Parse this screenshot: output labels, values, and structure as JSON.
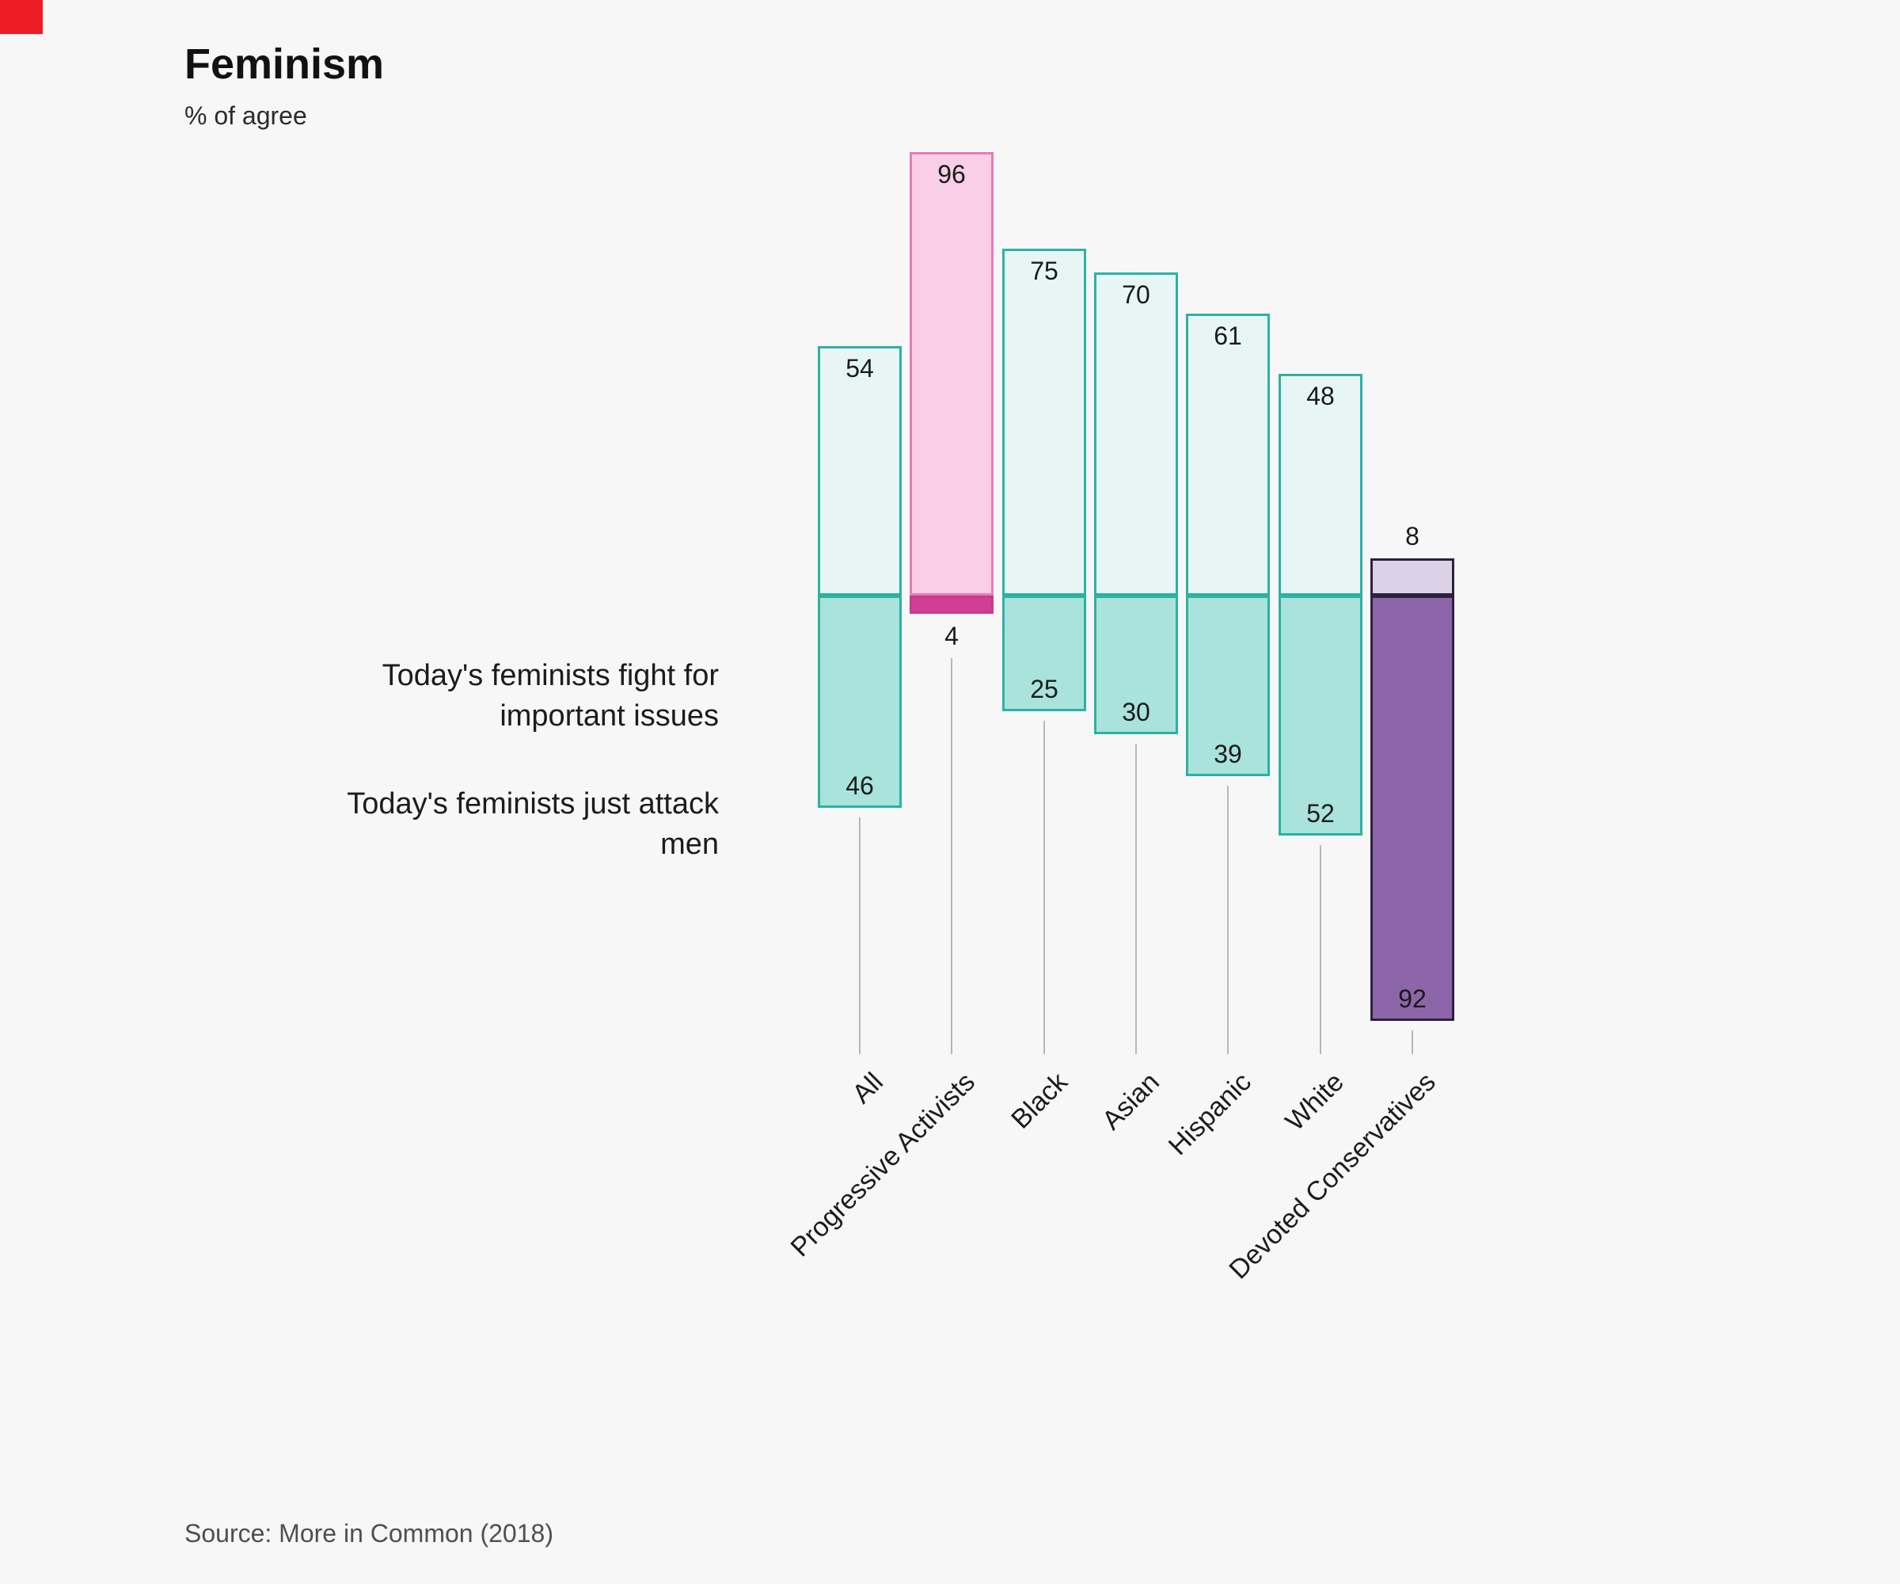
{
  "background": "#f7f7f8",
  "marker_color": "#ee1c25",
  "chart_data": {
    "type": "bar",
    "variant": "diverging-bar",
    "title": "Feminism",
    "subtitle": "% of agree",
    "source": "Source: More in Common (2018)",
    "categories": [
      "All",
      "Progressive Activists",
      "Black",
      "Asian",
      "Hispanic",
      "White",
      "Devoted Conservatives"
    ],
    "series": [
      {
        "name": "Today's feminists fight for important issues",
        "direction": "up",
        "values": [
          54,
          96,
          75,
          70,
          61,
          48,
          8
        ]
      },
      {
        "name": "Today's feminists just attack men",
        "direction": "down",
        "values": [
          46,
          4,
          25,
          30,
          39,
          52,
          92
        ]
      }
    ],
    "ylim": [
      0,
      100
    ],
    "grid": false,
    "legend_position": "left-annotations",
    "palette": [
      "teal",
      "pink",
      "teal",
      "teal",
      "teal",
      "teal",
      "purple"
    ],
    "colors": {
      "teal": {
        "top": "#e7f6f4",
        "topBorder": "#2bb2a4",
        "bottom": "#a9e3dc",
        "bottomBorder": "#2bb2a4"
      },
      "pink": {
        "top": "#f8cfe6",
        "topBorder": "#e979ba",
        "bottom": "#d23d95",
        "bottomBorder": "#c73a8d"
      },
      "purple": {
        "top": "#ddd1e8",
        "topBorder": "#2b2240",
        "bottom": "#8c66a8",
        "bottomBorder": "#2b2240"
      }
    }
  }
}
